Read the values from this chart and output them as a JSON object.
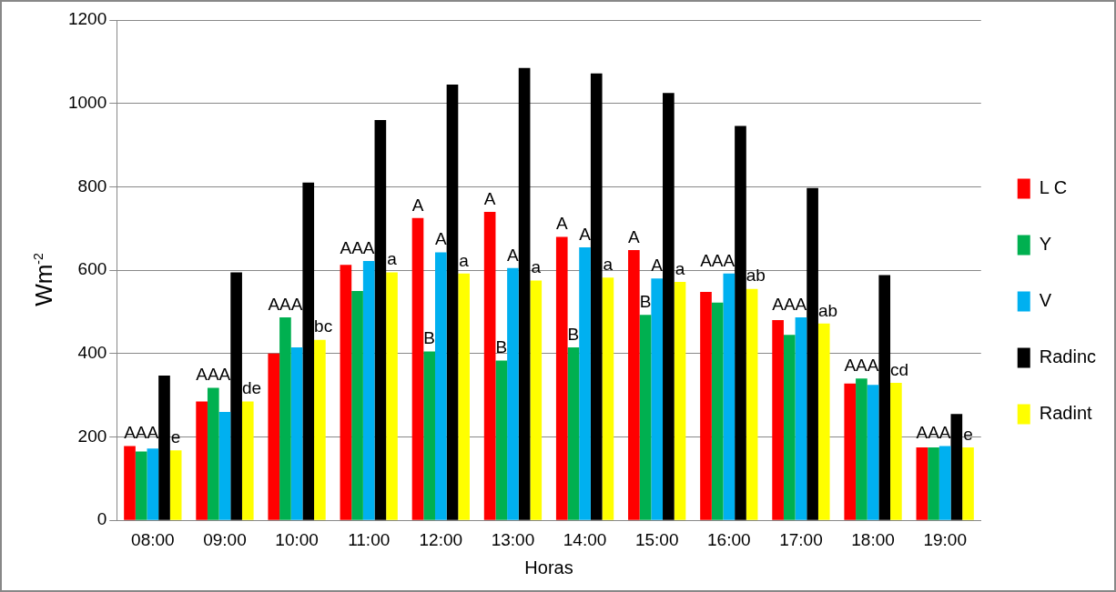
{
  "chart_data": {
    "type": "bar",
    "xlabel": "Horas",
    "ylabel": "Wm$^{-2}$",
    "categories": [
      "08:00",
      "09:00",
      "10:00",
      "11:00",
      "12:00",
      "13:00",
      "14:00",
      "15:00",
      "16:00",
      "17:00",
      "18:00",
      "19:00"
    ],
    "series": [
      {
        "name": "L C",
        "color": "#ff0000",
        "values": [
          178,
          285,
          400,
          613,
          725,
          740,
          680,
          648,
          548,
          480,
          328,
          175
        ],
        "value_labels": [
          null,
          null,
          null,
          null,
          "A",
          "A",
          "A",
          "A",
          null,
          null,
          null,
          null
        ]
      },
      {
        "name": "Y",
        "color": "#00b050",
        "values": [
          165,
          318,
          487,
          550,
          405,
          383,
          415,
          493,
          522,
          445,
          340,
          175
        ],
        "value_labels": [
          "AAA",
          "AAA",
          "AAA",
          "AAA",
          "B",
          "B",
          "B",
          "B",
          "AAA",
          "AAA",
          "AAA",
          "AAA"
        ]
      },
      {
        "name": "V",
        "color": "#00b0f0",
        "values": [
          172,
          260,
          415,
          622,
          643,
          605,
          655,
          580,
          592,
          487,
          325,
          178
        ],
        "value_labels": [
          null,
          null,
          null,
          null,
          "A",
          "A",
          "A",
          "A",
          null,
          null,
          null,
          null
        ]
      },
      {
        "name": "Radinc",
        "color": "#000000",
        "values": [
          347,
          595,
          810,
          960,
          1045,
          1085,
          1072,
          1025,
          946,
          797,
          588,
          255
        ]
      },
      {
        "name": "Radint",
        "color": "#ffff00",
        "values": [
          168,
          285,
          433,
          595,
          592,
          575,
          582,
          572,
          555,
          472,
          330,
          175
        ],
        "value_labels": [
          "e",
          "de",
          "bc",
          "a",
          "a",
          "a",
          "a",
          "a",
          "ab",
          "ab",
          "cd",
          "e"
        ]
      }
    ],
    "ylim": [
      0,
      1200
    ],
    "yticks": [
      0,
      200,
      400,
      600,
      800,
      1000,
      1200
    ],
    "grid": "y",
    "legend": "right"
  }
}
